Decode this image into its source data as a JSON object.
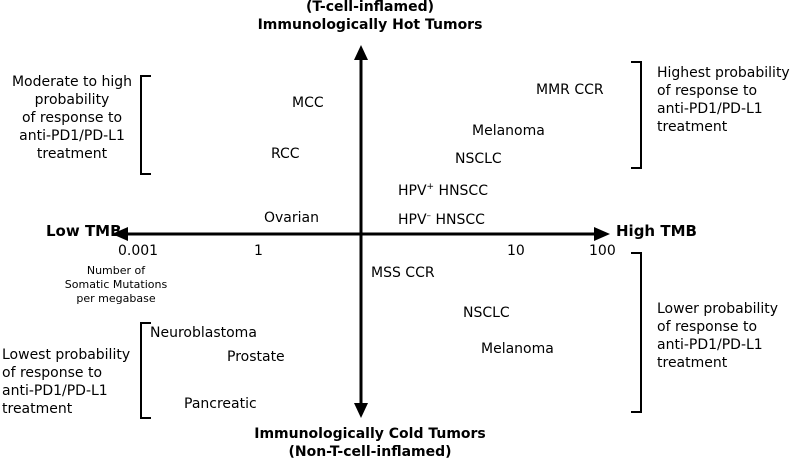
{
  "top_label": {
    "line1": "(T-cell-inflamed)",
    "line2": "Immunologically Hot Tumors"
  },
  "bottom_label": {
    "line1": "Immunologically Cold Tumors",
    "line2": "(Non-T-cell-inflamed)"
  },
  "x_axis": {
    "left_label": "Low TMB",
    "right_label": "High TMB",
    "ticks": [
      "0.001",
      "1",
      "10",
      "100"
    ],
    "unit_lines": [
      "Number of",
      "Somatic Mutations",
      "per megabase"
    ]
  },
  "quadrant_notes": {
    "top_left": [
      "Moderate to high",
      "probability",
      "of response to",
      "anti-PD1/PD-L1",
      "treatment"
    ],
    "top_right": [
      "Highest probability",
      "of response to",
      "anti-PD1/PD-L1",
      "treatment"
    ],
    "bottom_left": [
      "Lowest probability",
      "of response to",
      "anti-PD1/PD-L1",
      "treatment"
    ],
    "bottom_right": [
      "Lower probability",
      "of response to",
      "anti-PD1/PD-L1",
      "treatment"
    ]
  },
  "tumors": {
    "mcc": "MCC",
    "rcc": "RCC",
    "ovarian": "Ovarian",
    "mmr_ccr": "MMR CCR",
    "melanoma_hot": "Melanoma",
    "nsclc_hot": "NSCLC",
    "hpv_pos": {
      "base": "HPV",
      "sup": "+",
      "rest": " HNSCC"
    },
    "hpv_neg": {
      "base": "HPV",
      "sup": "–",
      "rest": " HNSCC"
    },
    "mss_ccr": "MSS CCR",
    "nsclc_cold": "NSCLC",
    "melanoma_cold": "Melanoma",
    "neuroblastoma": "Neuroblastoma",
    "prostate": "Prostate",
    "pancreatic": "Pancreatic"
  },
  "colors": {
    "ink": "#000000",
    "background": "#ffffff"
  }
}
